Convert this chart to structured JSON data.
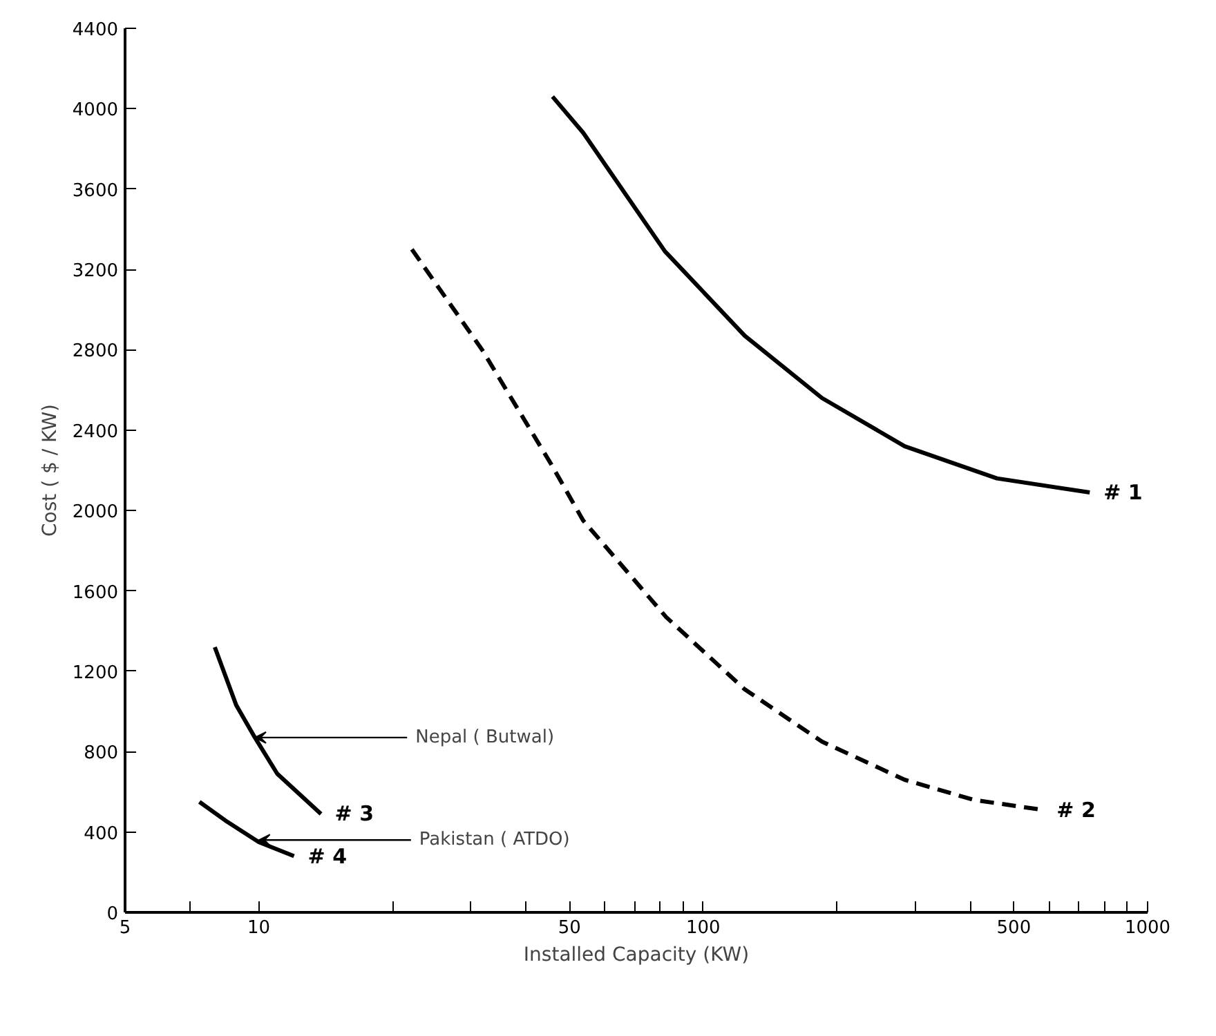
{
  "chart_data": {
    "type": "line",
    "xlabel": "Installed Capacity (KW)",
    "ylabel": "Cost ( $ / KW)",
    "log": "x",
    "xlim": [
      5,
      1000
    ],
    "ylim": [
      0,
      4400
    ],
    "xticks": [
      5,
      {
        "value": 7,
        "label": null
      },
      10,
      {
        "value": 20,
        "label": null
      },
      {
        "value": 30,
        "label": null
      },
      {
        "value": 40,
        "label": null
      },
      50,
      {
        "value": 60,
        "label": null
      },
      {
        "value": 70,
        "label": null
      },
      {
        "value": 80,
        "label": null
      },
      {
        "value": 90,
        "label": null
      },
      100,
      {
        "value": 200,
        "label": null
      },
      {
        "value": 300,
        "label": null
      },
      {
        "value": 400,
        "label": null
      },
      500,
      {
        "value": 600,
        "label": null
      },
      {
        "value": 700,
        "label": null
      },
      {
        "value": 800,
        "label": null
      },
      {
        "value": 900,
        "label": null
      },
      1000
    ],
    "yticks": [
      0,
      400,
      800,
      1200,
      1600,
      2000,
      2400,
      2800,
      3200,
      3600,
      4000,
      4400
    ],
    "grid": false,
    "marker": "none",
    "series": [
      {
        "name": "# 1",
        "color": "#000000",
        "line_style": "solid",
        "x": [
          45.8,
          53.7,
          82,
          124,
          185,
          284,
          458,
          741
        ],
        "values": [
          4060,
          3880,
          3290,
          2870,
          2560,
          2320,
          2160,
          2090
        ]
      },
      {
        "name": "# 2",
        "color": "#000000",
        "line_style": "dashed",
        "x": [
          22.1,
          31.8,
          45.5,
          53.7,
          82.5,
          124,
          185,
          284,
          406,
          581
        ],
        "values": [
          3300,
          2800,
          2230,
          1950,
          1470,
          1110,
          850,
          660,
          560,
          510
        ]
      },
      {
        "name": "# 3",
        "color": "#000000",
        "line_style": "solid",
        "x": [
          7.96,
          8.9,
          9.8,
          11.0,
          13.8
        ],
        "values": [
          1320,
          1030,
          870,
          690,
          490
        ]
      },
      {
        "name": "# 4",
        "color": "#000000",
        "line_style": "solid",
        "x": [
          7.35,
          8.5,
          10,
          12.0
        ],
        "values": [
          550,
          450,
          350,
          280
        ]
      }
    ],
    "annotations": [
      {
        "text": "Nepal ( Butwal)",
        "x": 9.8,
        "y": 870
      },
      {
        "text": "Pakistan ( ATDO)",
        "x": 10,
        "y": 360
      }
    ]
  }
}
